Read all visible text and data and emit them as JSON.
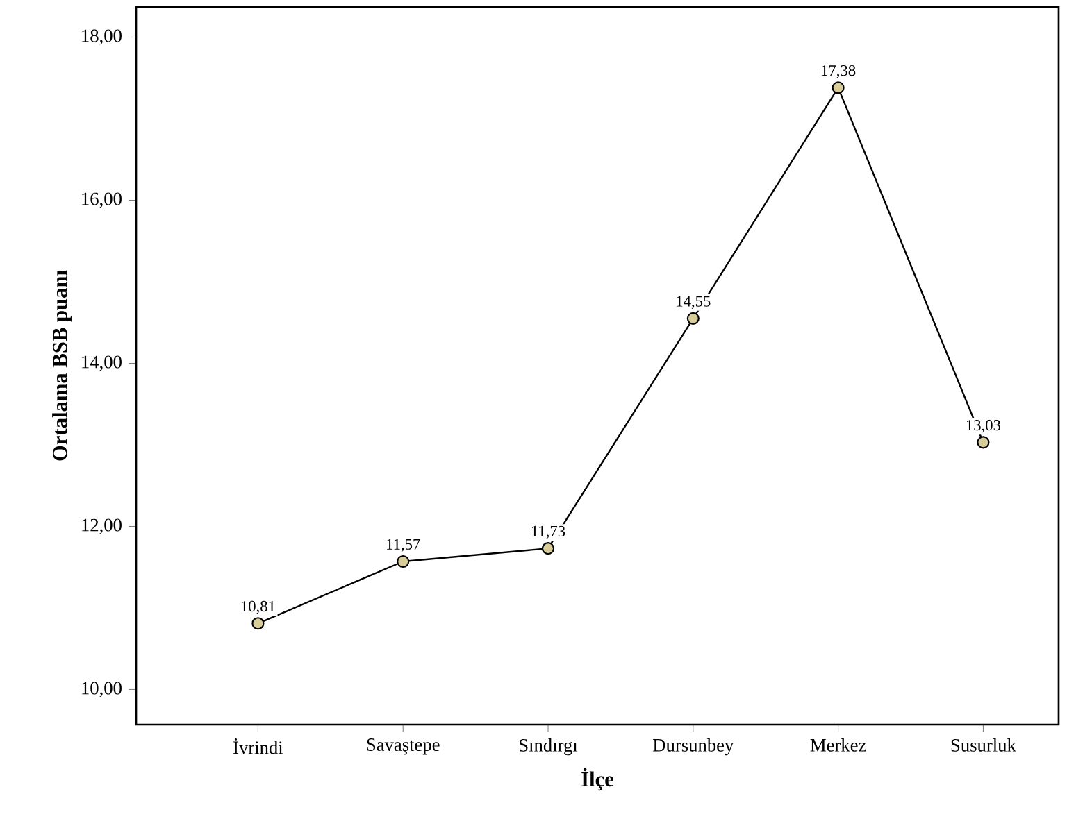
{
  "chart_data": {
    "type": "line",
    "xlabel": "İlçe",
    "ylabel": "Ortalama BSB puanı",
    "categories": [
      "İvrindi",
      "Savaştepe",
      "Sındırgı",
      "Dursunbey",
      "Merkez",
      "Susurluk"
    ],
    "values": [
      10.81,
      11.57,
      11.73,
      14.55,
      17.38,
      13.03
    ],
    "value_labels": [
      "10,81",
      "11,57",
      "11,73",
      "14,55",
      "17,38",
      "13,03"
    ],
    "color": "#d8cc98",
    "marker": "circle",
    "line_style": "solid",
    "ylim": [
      9.57,
      18.37
    ],
    "yticks": [
      {
        "value": 10,
        "label": "10,00"
      },
      {
        "value": 12,
        "label": "12,00"
      },
      {
        "value": 14,
        "label": "14,00"
      },
      {
        "value": 16,
        "label": "16,00"
      },
      {
        "value": 18,
        "label": "18,00"
      }
    ],
    "grid": false
  }
}
